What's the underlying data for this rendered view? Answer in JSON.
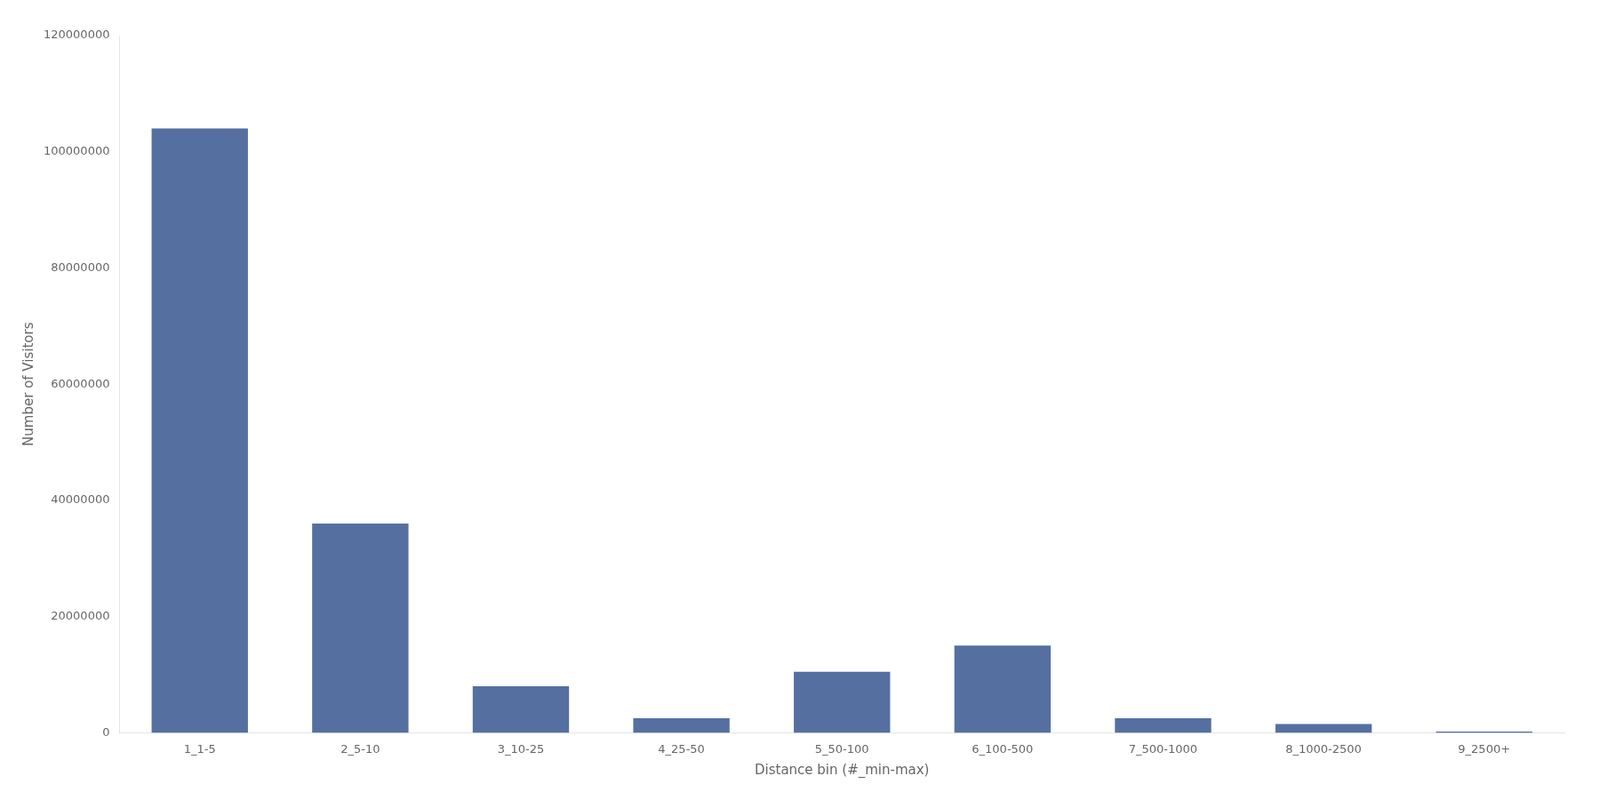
{
  "chart_data": {
    "type": "bar",
    "categories": [
      "1_1-5",
      "2_5-10",
      "3_10-25",
      "4_25-50",
      "5_50-100",
      "6_100-500",
      "7_500-1000",
      "8_1000-2500",
      "9_2500+"
    ],
    "values": [
      104000000,
      36000000,
      8000000,
      2500000,
      10500000,
      15000000,
      2500000,
      1500000,
      200000
    ],
    "color": "#5570a0",
    "xlabel": "Distance bin (#_min-max)",
    "ylabel": "Number of Visitors",
    "ylim": [
      0,
      120000000
    ],
    "yticks": [
      0,
      20000000,
      40000000,
      60000000,
      80000000,
      100000000,
      120000000
    ],
    "grid": false
  }
}
